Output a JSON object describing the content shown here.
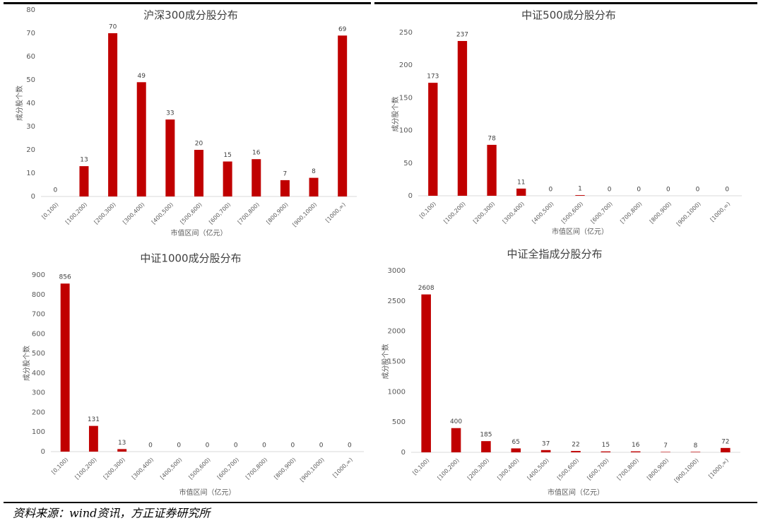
{
  "chart_data": [
    {
      "type": "bar",
      "title": "沪深300成分股分布",
      "y_label": "成分股个数",
      "x_label": "市值区间（亿元）",
      "categories": [
        "[0,100)",
        "[100,200)",
        "[200,300)",
        "[300,400)",
        "[400,500)",
        "[500,600)",
        "[600,700)",
        "[700,800)",
        "[800,900)",
        "[900,1000)",
        "[1000,∞)"
      ],
      "values": [
        0,
        13,
        70,
        49,
        33,
        20,
        15,
        16,
        7,
        8,
        69
      ],
      "color": "#c00000",
      "ylim": [
        0,
        80
      ],
      "yticks": [
        0,
        10,
        20,
        30,
        40,
        50,
        60,
        70,
        80
      ]
    },
    {
      "type": "bar",
      "title": "中证500成分股分布",
      "y_label": "成分股个数",
      "x_label": "市值区间（亿元）",
      "categories": [
        "[0,100)",
        "[100,200)",
        "[200,300)",
        "[300,400)",
        "[400,500)",
        "[500,600)",
        "[600,700)",
        "[700,800)",
        "[800,900)",
        "[900,1000)",
        "[1000,∞)"
      ],
      "values": [
        173,
        237,
        78,
        11,
        0,
        1,
        0,
        0,
        0,
        0,
        0
      ],
      "color": "#c00000",
      "ylim": [
        0,
        250
      ],
      "yticks": [
        0,
        50,
        100,
        150,
        200,
        250
      ]
    },
    {
      "type": "bar",
      "title": "中证1000成分股分布",
      "y_label": "成分股个数",
      "x_label": "市值区间（亿元）",
      "categories": [
        "[0,100)",
        "[100,200)",
        "[200,300)",
        "[300,400)",
        "[400,500)",
        "[500,600)",
        "[600,700)",
        "[700,800)",
        "[800,900)",
        "[900,1000)",
        "[1000,∞)"
      ],
      "values": [
        856,
        131,
        13,
        0,
        0,
        0,
        0,
        0,
        0,
        0,
        0
      ],
      "color": "#c00000",
      "ylim": [
        0,
        900
      ],
      "yticks": [
        0,
        100,
        200,
        300,
        400,
        500,
        600,
        700,
        800,
        900
      ]
    },
    {
      "type": "bar",
      "title": "中证全指成分股分布",
      "y_label": "成分股个数",
      "x_label": "市值区间（亿元）",
      "categories": [
        "[0,100)",
        "[100,200)",
        "[200,300)",
        "[300,400)",
        "[400,500)",
        "[500,600)",
        "[600,700)",
        "[700,800)",
        "[800,900)",
        "[900,1000)",
        "[1000,∞)"
      ],
      "values": [
        2608,
        400,
        185,
        65,
        37,
        22,
        15,
        16,
        7,
        8,
        72
      ],
      "color": "#c00000",
      "ylim": [
        0,
        3000
      ],
      "yticks": [
        0,
        500,
        1000,
        1500,
        2000,
        2500,
        3000
      ]
    }
  ],
  "source": "资料来源：wind资讯，方正证券研究所"
}
